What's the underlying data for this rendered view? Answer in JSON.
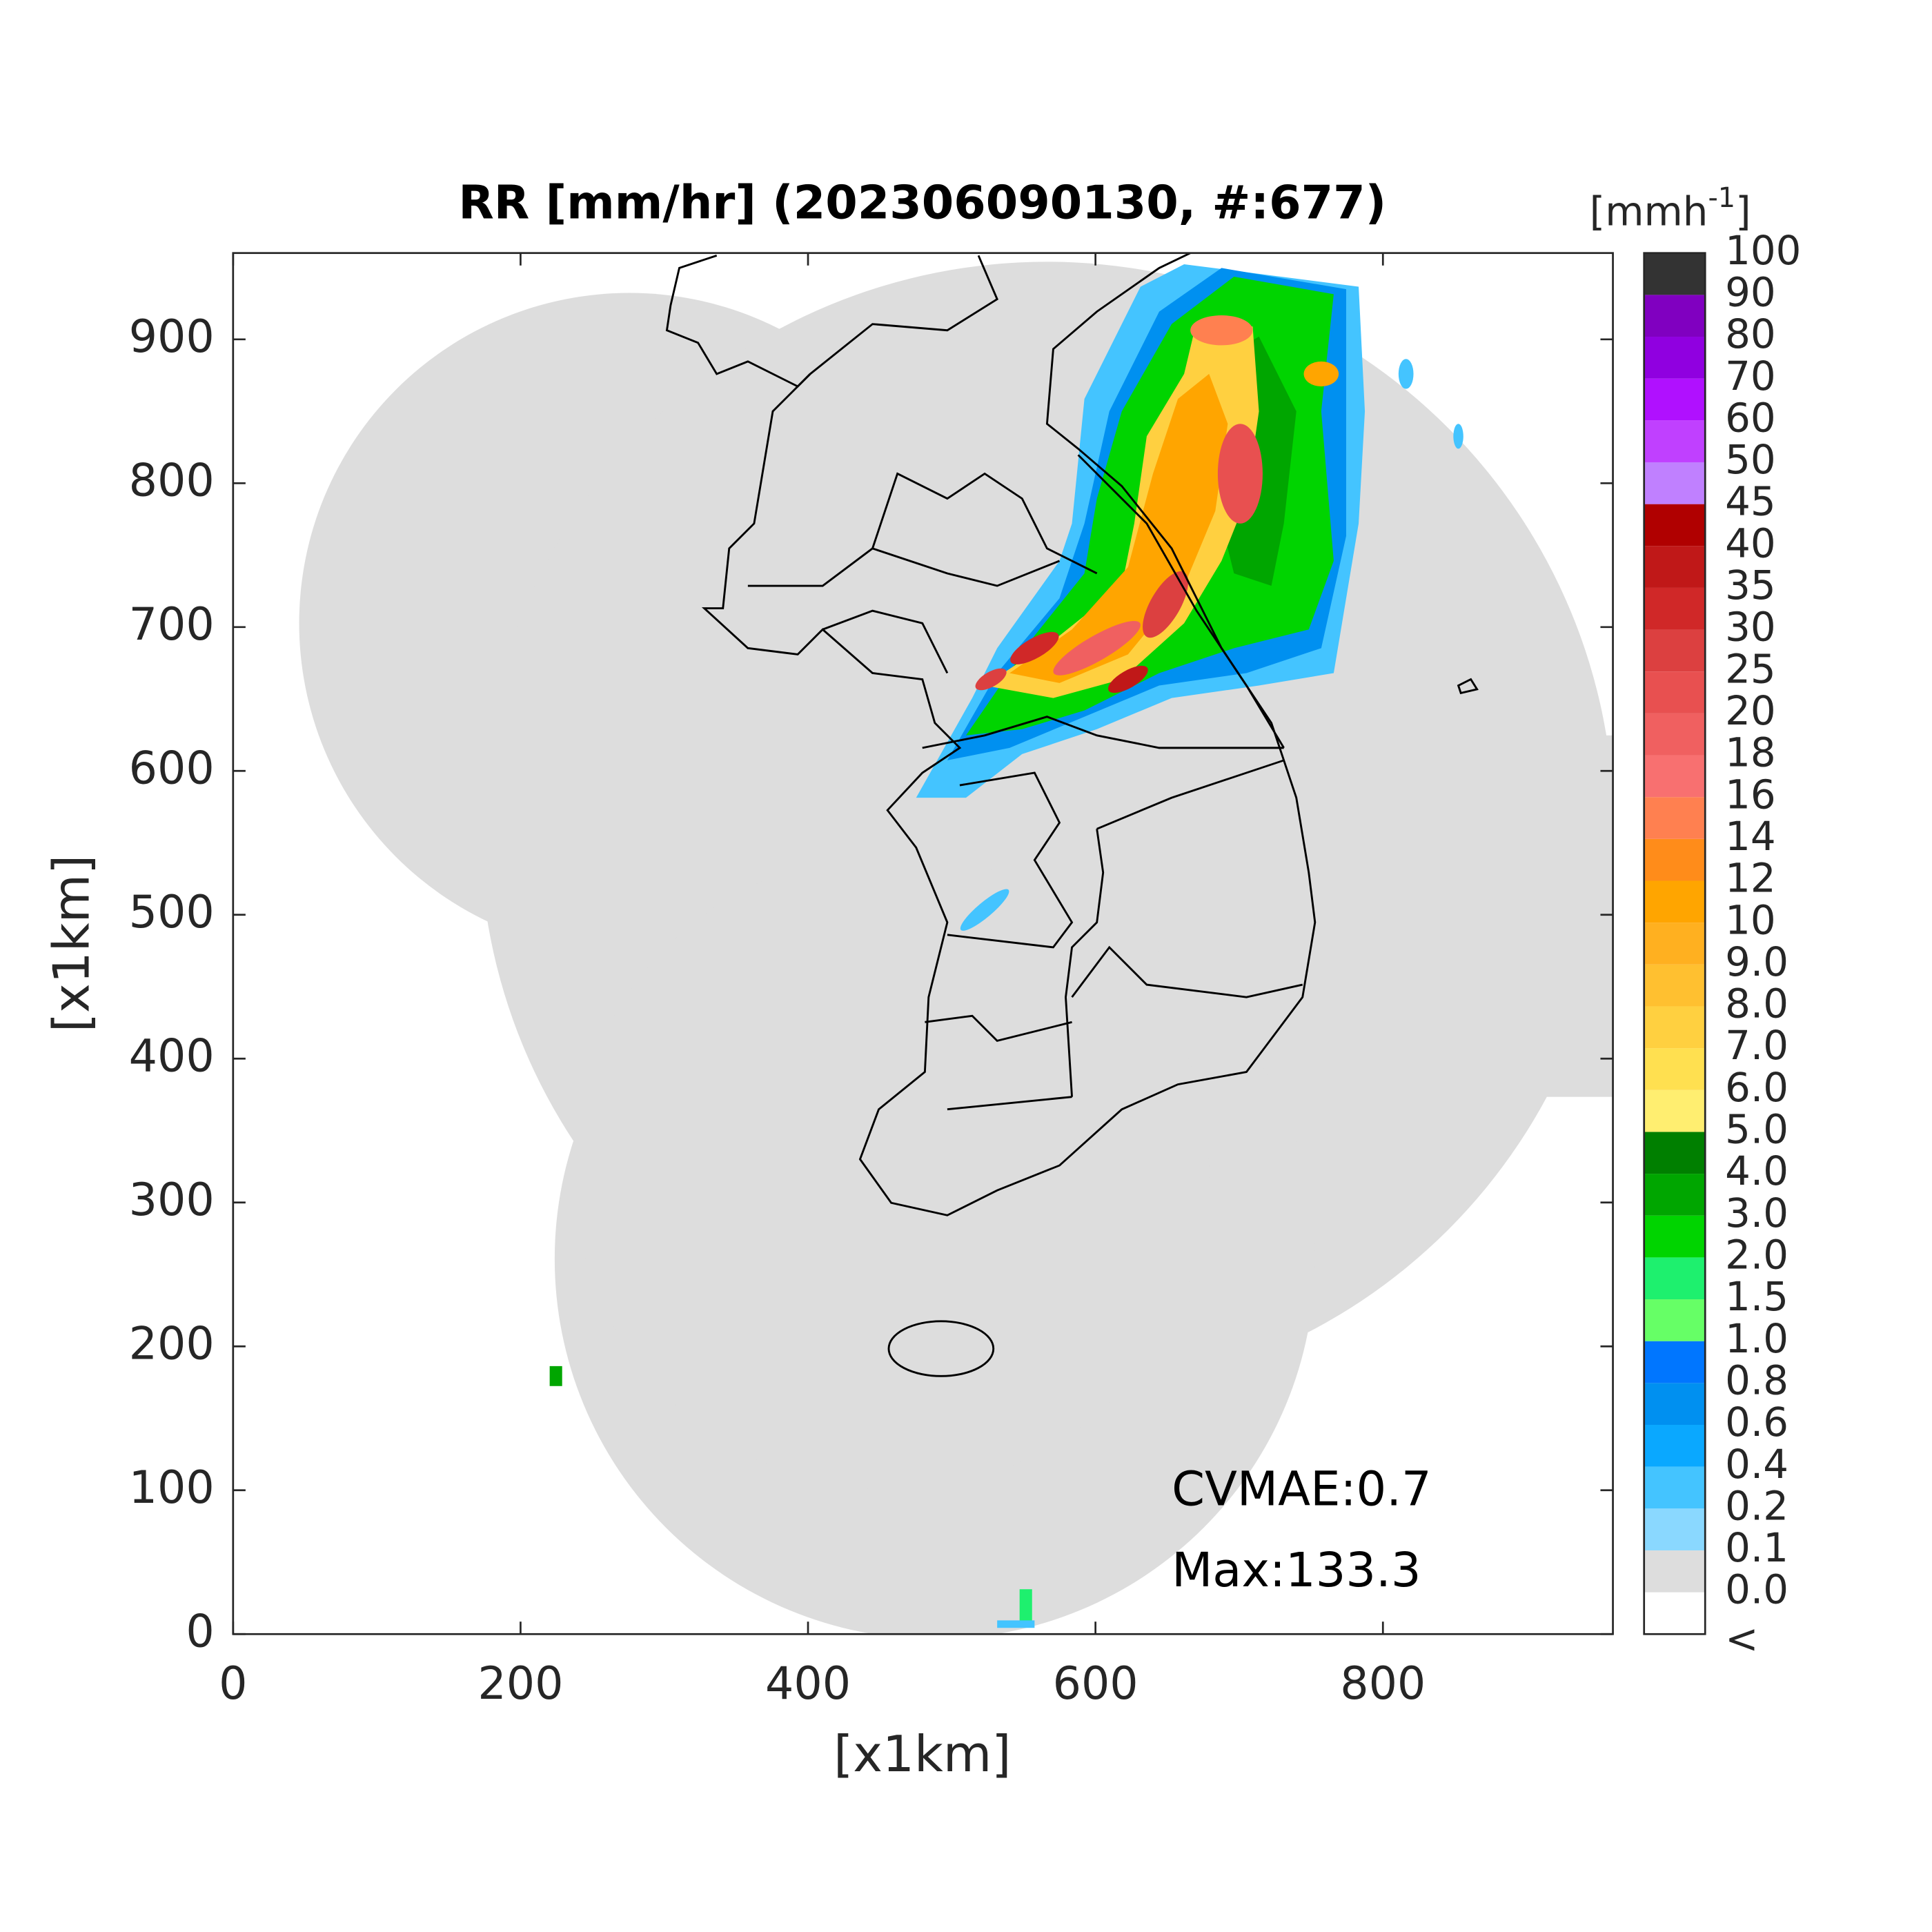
{
  "chart_data": {
    "type": "heatmap",
    "title": "RR [mm/hr] (202306090130, #:677)",
    "xlabel": "[x1km]",
    "ylabel": "[x1km]",
    "xlim": [
      0,
      960
    ],
    "ylim": [
      0,
      960
    ],
    "xticks": [
      0,
      200,
      400,
      600,
      800
    ],
    "yticks": [
      0,
      100,
      200,
      300,
      400,
      500,
      600,
      700,
      800,
      900
    ],
    "grid": false,
    "colorbar": {
      "title": "[mmh",
      "title_sup": "-1",
      "title_end": "]",
      "labels": [
        "<",
        "0.0",
        "0.1",
        "0.2",
        "0.4",
        "0.6",
        "0.8",
        "1.0",
        "1.5",
        "2.0",
        "3.0",
        "4.0",
        "5.0",
        "6.0",
        "7.0",
        "8.0",
        "9.0",
        "10",
        "12",
        "14",
        "16",
        "18",
        "20",
        "25",
        "30",
        "35",
        "40",
        "45",
        "50",
        "60",
        "70",
        "80",
        "90",
        "100"
      ],
      "colors": [
        "#ffffff",
        "#dddddd",
        "#8ad8ff",
        "#44c4ff",
        "#0aa8ff",
        "#0090f0",
        "#0076ff",
        "#66ff66",
        "#1ef06e",
        "#00d400",
        "#00a600",
        "#007f00",
        "#ffee70",
        "#ffe050",
        "#ffd040",
        "#ffc030",
        "#ffb020",
        "#ffa500",
        "#ff8c1a",
        "#ff8050",
        "#f87070",
        "#f06060",
        "#e85050",
        "#dc4040",
        "#d02828",
        "#c01818",
        "#b00000",
        "#c080ff",
        "#c040ff",
        "#b010ff",
        "#9000e0",
        "#8000c0",
        "#333333"
      ]
    },
    "annotations": [
      "CVMAE:0.7",
      "Max:133.3"
    ]
  }
}
